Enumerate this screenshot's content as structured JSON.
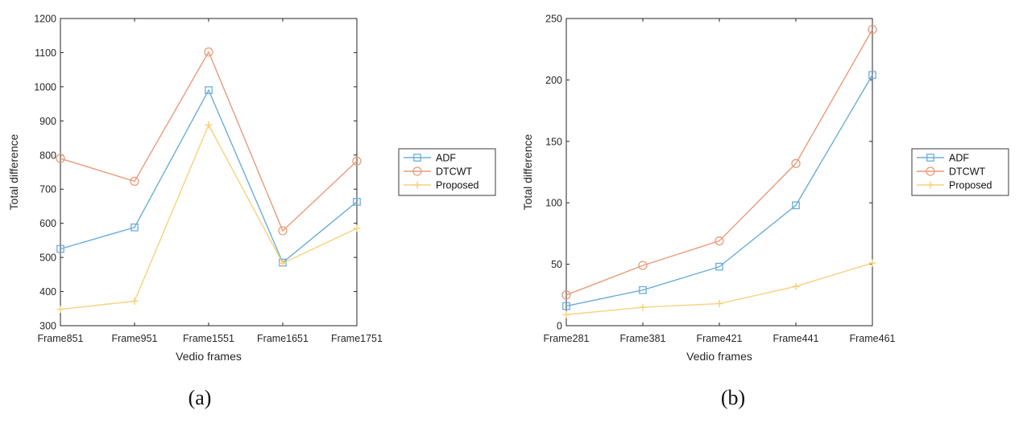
{
  "chart_data": [
    {
      "type": "line",
      "caption": "(a)",
      "xlabel": "Vedio frames",
      "ylabel": "Total difference",
      "categories": [
        "Frame851",
        "Frame951",
        "Frame1551",
        "Frame1651",
        "Frame1751"
      ],
      "ylim": [
        300,
        1200
      ],
      "yticks": [
        300,
        400,
        500,
        600,
        700,
        800,
        900,
        1000,
        1100,
        1200
      ],
      "grid": false,
      "legend_position": "outside-right",
      "series": [
        {
          "name": "ADF",
          "color": "#0072BD",
          "marker": "square",
          "values": [
            525,
            588,
            990,
            485,
            663
          ]
        },
        {
          "name": "DTCWT",
          "color": "#D95319",
          "marker": "circle",
          "values": [
            790,
            723,
            1102,
            578,
            782
          ]
        },
        {
          "name": "Proposed",
          "color": "#EDB120",
          "marker": "plus",
          "values": [
            348,
            372,
            888,
            483,
            585
          ]
        }
      ]
    },
    {
      "type": "line",
      "caption": "(b)",
      "xlabel": "Vedio frames",
      "ylabel": "Total difference",
      "categories": [
        "Frame281",
        "Frame381",
        "Frame421",
        "Frame441",
        "Frame461"
      ],
      "ylim": [
        0,
        250
      ],
      "yticks": [
        0,
        50,
        100,
        150,
        200,
        250
      ],
      "grid": false,
      "legend_position": "inside-top-right",
      "series": [
        {
          "name": "ADF",
          "color": "#0072BD",
          "marker": "square",
          "values": [
            16,
            29,
            48,
            98,
            204
          ]
        },
        {
          "name": "DTCWT",
          "color": "#D95319",
          "marker": "circle",
          "values": [
            25,
            49,
            69,
            132,
            241
          ]
        },
        {
          "name": "Proposed",
          "color": "#EDB120",
          "marker": "plus",
          "values": [
            9,
            15,
            18,
            32,
            51
          ]
        }
      ]
    }
  ]
}
